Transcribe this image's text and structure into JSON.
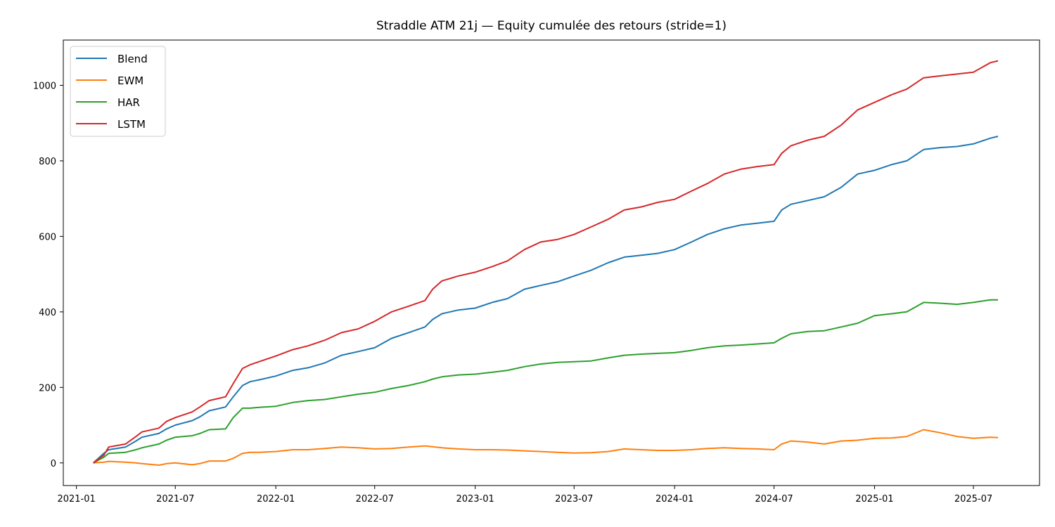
{
  "chart_data": {
    "type": "line",
    "title": "Straddle ATM 21j — Equity cumulée des retours (stride=1)",
    "xlabel": "",
    "ylabel": "",
    "x_ticks": [
      "2021-01",
      "2021-07",
      "2022-01",
      "2022-07",
      "2023-01",
      "2023-07",
      "2024-01",
      "2024-07",
      "2025-01",
      "2025-07"
    ],
    "y_ticks": [
      0,
      200,
      400,
      600,
      800,
      1000
    ],
    "xlim": [
      "2020-12-08",
      "2025-10-30"
    ],
    "ylim": [
      -60,
      1120
    ],
    "grid": false,
    "legend_position": "top-left",
    "x": [
      "2021-02-01",
      "2021-02-20",
      "2021-03-01",
      "2021-04-01",
      "2021-04-20",
      "2021-05-01",
      "2021-06-01",
      "2021-06-15",
      "2021-07-01",
      "2021-08-01",
      "2021-08-15",
      "2021-09-01",
      "2021-10-01",
      "2021-10-15",
      "2021-11-01",
      "2021-11-15",
      "2021-12-01",
      "2022-01-01",
      "2022-02-01",
      "2022-03-01",
      "2022-04-01",
      "2022-05-01",
      "2022-06-01",
      "2022-07-01",
      "2022-08-01",
      "2022-09-01",
      "2022-10-01",
      "2022-10-15",
      "2022-11-01",
      "2022-12-01",
      "2023-01-01",
      "2023-02-01",
      "2023-03-01",
      "2023-04-01",
      "2023-05-01",
      "2023-06-01",
      "2023-07-01",
      "2023-08-01",
      "2023-09-01",
      "2023-10-01",
      "2023-11-01",
      "2023-12-01",
      "2024-01-01",
      "2024-02-01",
      "2024-03-01",
      "2024-04-01",
      "2024-05-01",
      "2024-06-01",
      "2024-07-01",
      "2024-07-15",
      "2024-08-01",
      "2024-09-01",
      "2024-10-01",
      "2024-11-01",
      "2024-12-01",
      "2025-01-01",
      "2025-02-01",
      "2025-03-01",
      "2025-04-01",
      "2025-05-01",
      "2025-06-01",
      "2025-07-01",
      "2025-08-01",
      "2025-08-15"
    ],
    "series": [
      {
        "name": "Blend",
        "color": "#1f77b4",
        "values": [
          0,
          25,
          35,
          42,
          58,
          68,
          78,
          90,
          100,
          112,
          122,
          138,
          148,
          175,
          205,
          215,
          220,
          230,
          245,
          252,
          265,
          285,
          295,
          305,
          330,
          345,
          360,
          380,
          395,
          405,
          410,
          425,
          435,
          460,
          470,
          480,
          495,
          510,
          530,
          545,
          550,
          555,
          565,
          585,
          605,
          620,
          630,
          635,
          640,
          670,
          685,
          695,
          705,
          730,
          765,
          775,
          790,
          800,
          830,
          835,
          838,
          845,
          860,
          865
        ]
      },
      {
        "name": "EWM",
        "color": "#ff7f0e",
        "values": [
          0,
          2,
          4,
          2,
          0,
          -2,
          -6,
          -2,
          0,
          -5,
          -2,
          5,
          5,
          12,
          25,
          28,
          28,
          30,
          35,
          35,
          38,
          42,
          40,
          37,
          38,
          42,
          45,
          43,
          40,
          37,
          35,
          35,
          34,
          32,
          30,
          28,
          26,
          27,
          30,
          37,
          35,
          33,
          33,
          35,
          38,
          40,
          38,
          37,
          35,
          50,
          58,
          55,
          50,
          58,
          60,
          65,
          66,
          70,
          88,
          80,
          70,
          65,
          68,
          67
        ]
      },
      {
        "name": "HAR",
        "color": "#2ca02c",
        "values": [
          0,
          15,
          25,
          28,
          35,
          40,
          50,
          60,
          68,
          72,
          78,
          88,
          90,
          120,
          145,
          145,
          147,
          150,
          160,
          165,
          168,
          175,
          182,
          187,
          197,
          205,
          215,
          222,
          228,
          233,
          235,
          240,
          245,
          255,
          262,
          266,
          268,
          270,
          278,
          285,
          288,
          290,
          292,
          298,
          305,
          310,
          312,
          315,
          318,
          330,
          342,
          348,
          350,
          360,
          370,
          390,
          395,
          400,
          425,
          423,
          420,
          425,
          432,
          432
        ]
      },
      {
        "name": "LSTM",
        "color": "#d62728",
        "values": [
          0,
          20,
          42,
          50,
          70,
          82,
          92,
          110,
          120,
          135,
          148,
          165,
          175,
          210,
          250,
          260,
          268,
          283,
          300,
          310,
          325,
          345,
          355,
          375,
          400,
          415,
          430,
          460,
          482,
          495,
          505,
          520,
          535,
          565,
          585,
          592,
          605,
          625,
          645,
          670,
          678,
          690,
          698,
          720,
          740,
          765,
          778,
          785,
          790,
          820,
          840,
          855,
          865,
          895,
          935,
          955,
          975,
          990,
          1020,
          1025,
          1030,
          1035,
          1060,
          1065
        ]
      }
    ]
  }
}
